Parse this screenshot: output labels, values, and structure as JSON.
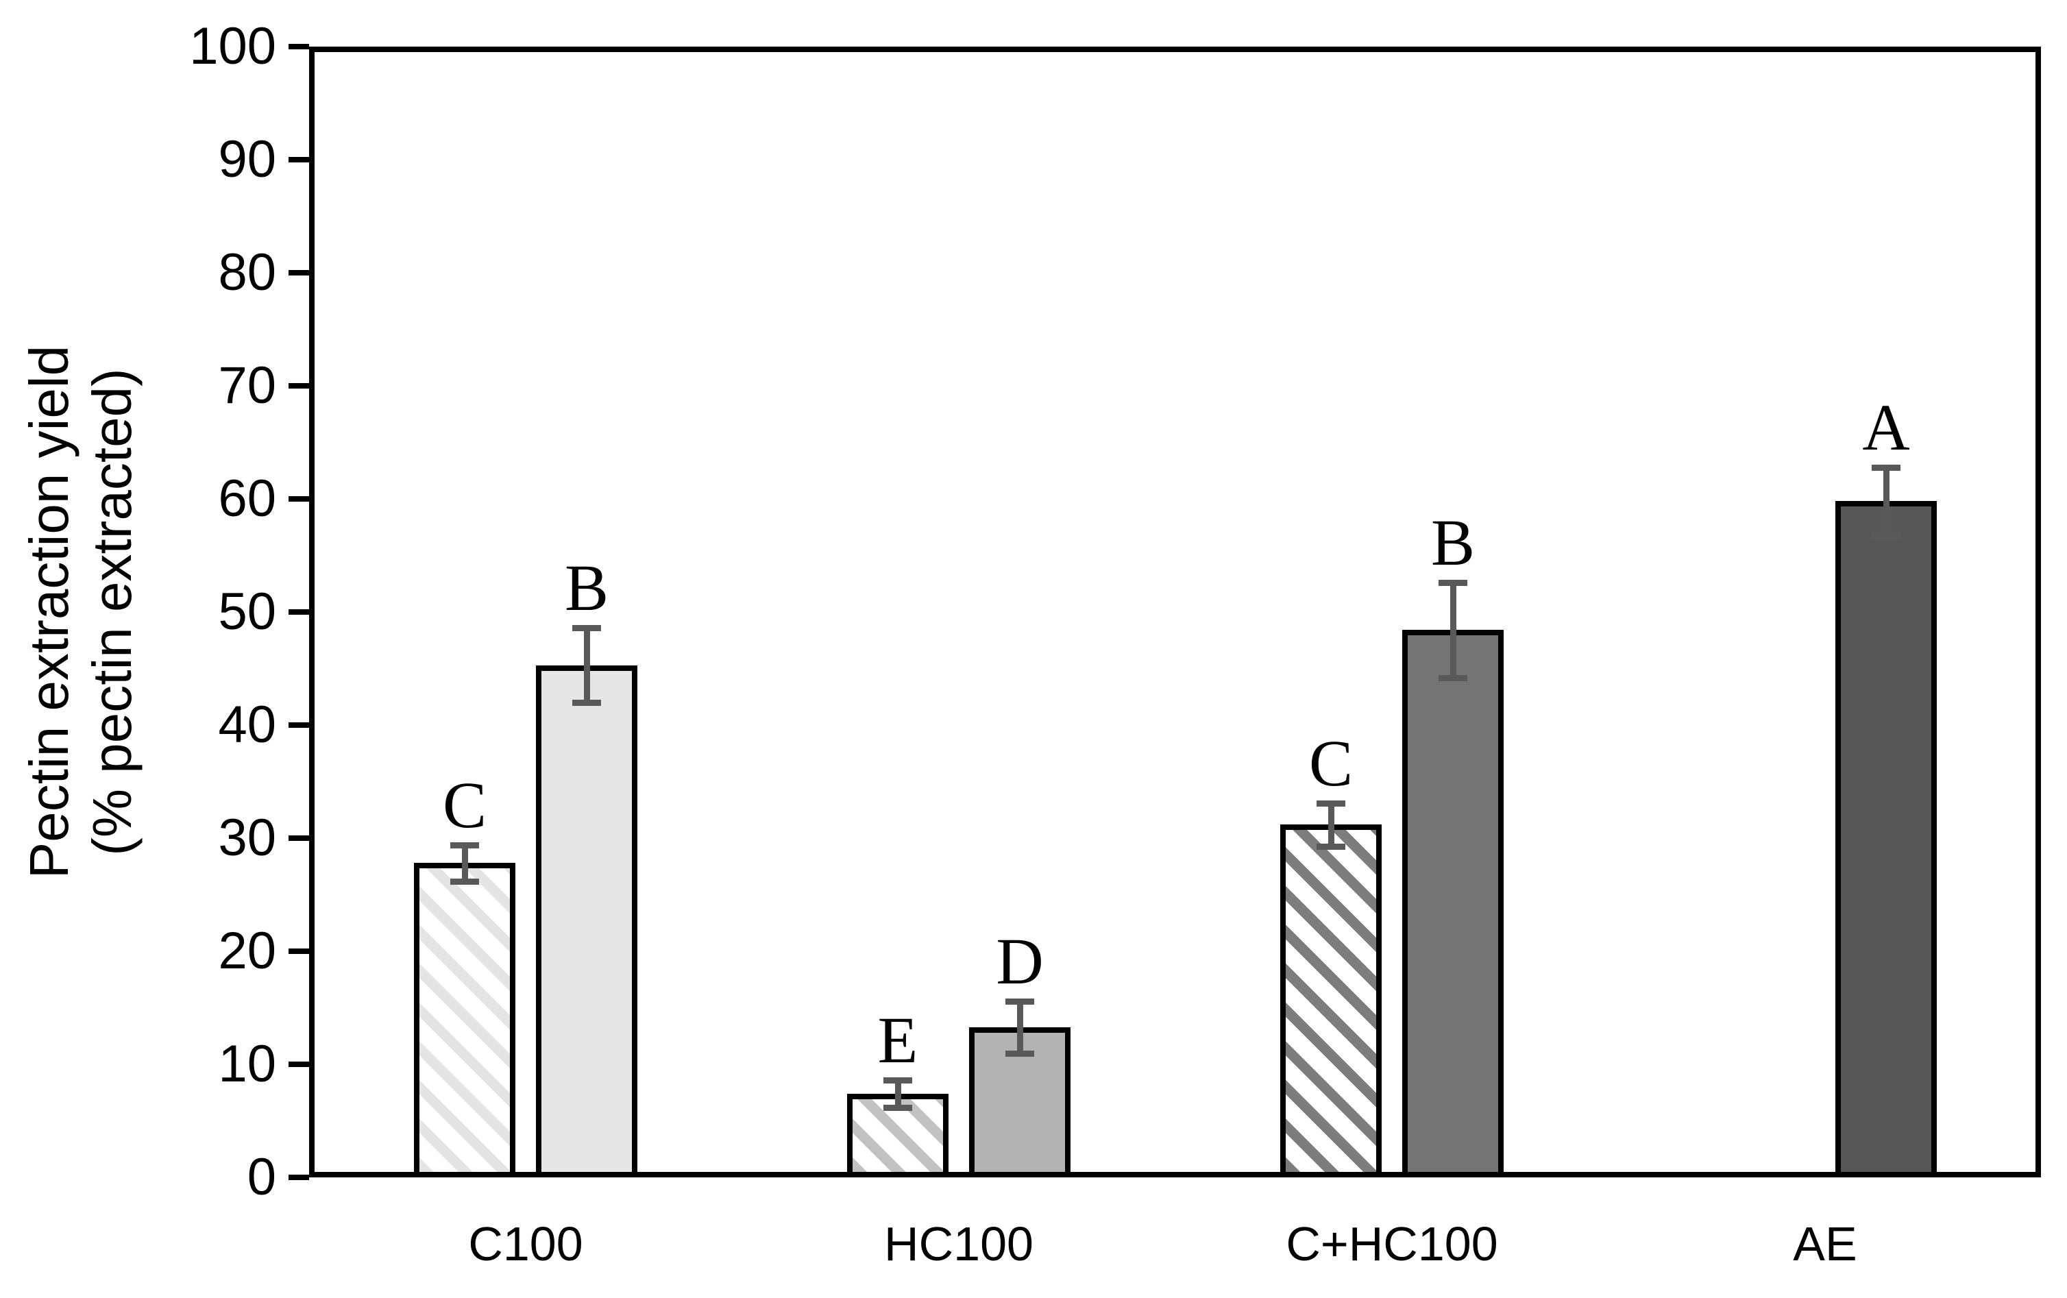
{
  "chart_data": {
    "type": "bar",
    "categories": [
      "C100",
      "HC100",
      "C+HC100",
      "AE"
    ],
    "series": [
      {
        "name": "hatched-series",
        "pattern": "diagonal-stripes",
        "values": [
          27.8,
          7.4,
          31.2,
          null
        ],
        "errors": [
          1.6,
          1.2,
          1.9,
          null
        ],
        "letters": [
          "C",
          "E",
          "C",
          null
        ],
        "stripe_colors": [
          "#e4e4e4",
          "#c2c2c2",
          "#7d7d7d",
          null
        ],
        "base_color": "#ffffff"
      },
      {
        "name": "solid-series",
        "pattern": "solid",
        "values": [
          45.3,
          13.3,
          48.4,
          59.8
        ],
        "errors": [
          3.3,
          2.3,
          4.2,
          3.0
        ],
        "letters": [
          "B",
          "D",
          "B",
          "A"
        ],
        "fill_colors": [
          "#e6e6e6",
          "#b3b3b3",
          "#747474",
          "#575757"
        ]
      }
    ],
    "ylabel_line1": "Pectin extraction yield",
    "ylabel_line2": "(% pectin extracted)",
    "ylim": [
      0,
      100
    ],
    "yticks": [
      0,
      10,
      20,
      30,
      40,
      50,
      60,
      70,
      80,
      90,
      100
    ],
    "grid": "off",
    "legend": "none",
    "bar_border_color": "#000000",
    "error_bar_color": "#595959",
    "frame_color": "#000000",
    "background_color": "#ffffff"
  }
}
